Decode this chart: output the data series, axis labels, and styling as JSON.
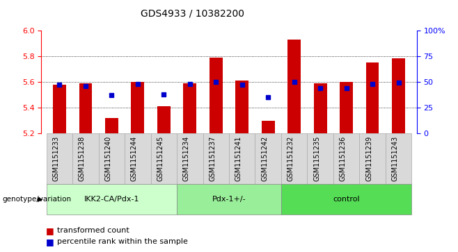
{
  "title": "GDS4933 / 10382200",
  "samples": [
    "GSM1151233",
    "GSM1151238",
    "GSM1151240",
    "GSM1151244",
    "GSM1151245",
    "GSM1151234",
    "GSM1151237",
    "GSM1151241",
    "GSM1151242",
    "GSM1151232",
    "GSM1151235",
    "GSM1151236",
    "GSM1151239",
    "GSM1151243"
  ],
  "red_values": [
    5.58,
    5.59,
    5.32,
    5.6,
    5.41,
    5.59,
    5.79,
    5.61,
    5.3,
    5.93,
    5.59,
    5.6,
    5.75,
    5.78
  ],
  "blue_values": [
    47,
    46,
    37,
    48,
    38,
    48,
    50,
    47,
    35,
    50,
    44,
    44,
    48,
    49
  ],
  "y_min": 5.2,
  "y_max": 6.0,
  "y_ticks_left": [
    5.2,
    5.4,
    5.6,
    5.8,
    6.0
  ],
  "y_ticks_right": [
    0,
    25,
    50,
    75,
    100
  ],
  "bar_color": "#CC0000",
  "dot_color": "#0000CC",
  "groups": [
    {
      "label": "IKK2-CA/Pdx-1",
      "start": 0,
      "end": 5,
      "color": "#CCFFCC"
    },
    {
      "label": "Pdx-1+/-",
      "start": 5,
      "end": 9,
      "color": "#99EE99"
    },
    {
      "label": "control",
      "start": 9,
      "end": 14,
      "color": "#55DD55"
    }
  ],
  "xlabel_genotype": "genotype/variation",
  "legend_red": "transformed count",
  "legend_blue": "percentile rank within the sample",
  "gray_box_color": "#d9d9d9",
  "group_border_color": "#888888"
}
